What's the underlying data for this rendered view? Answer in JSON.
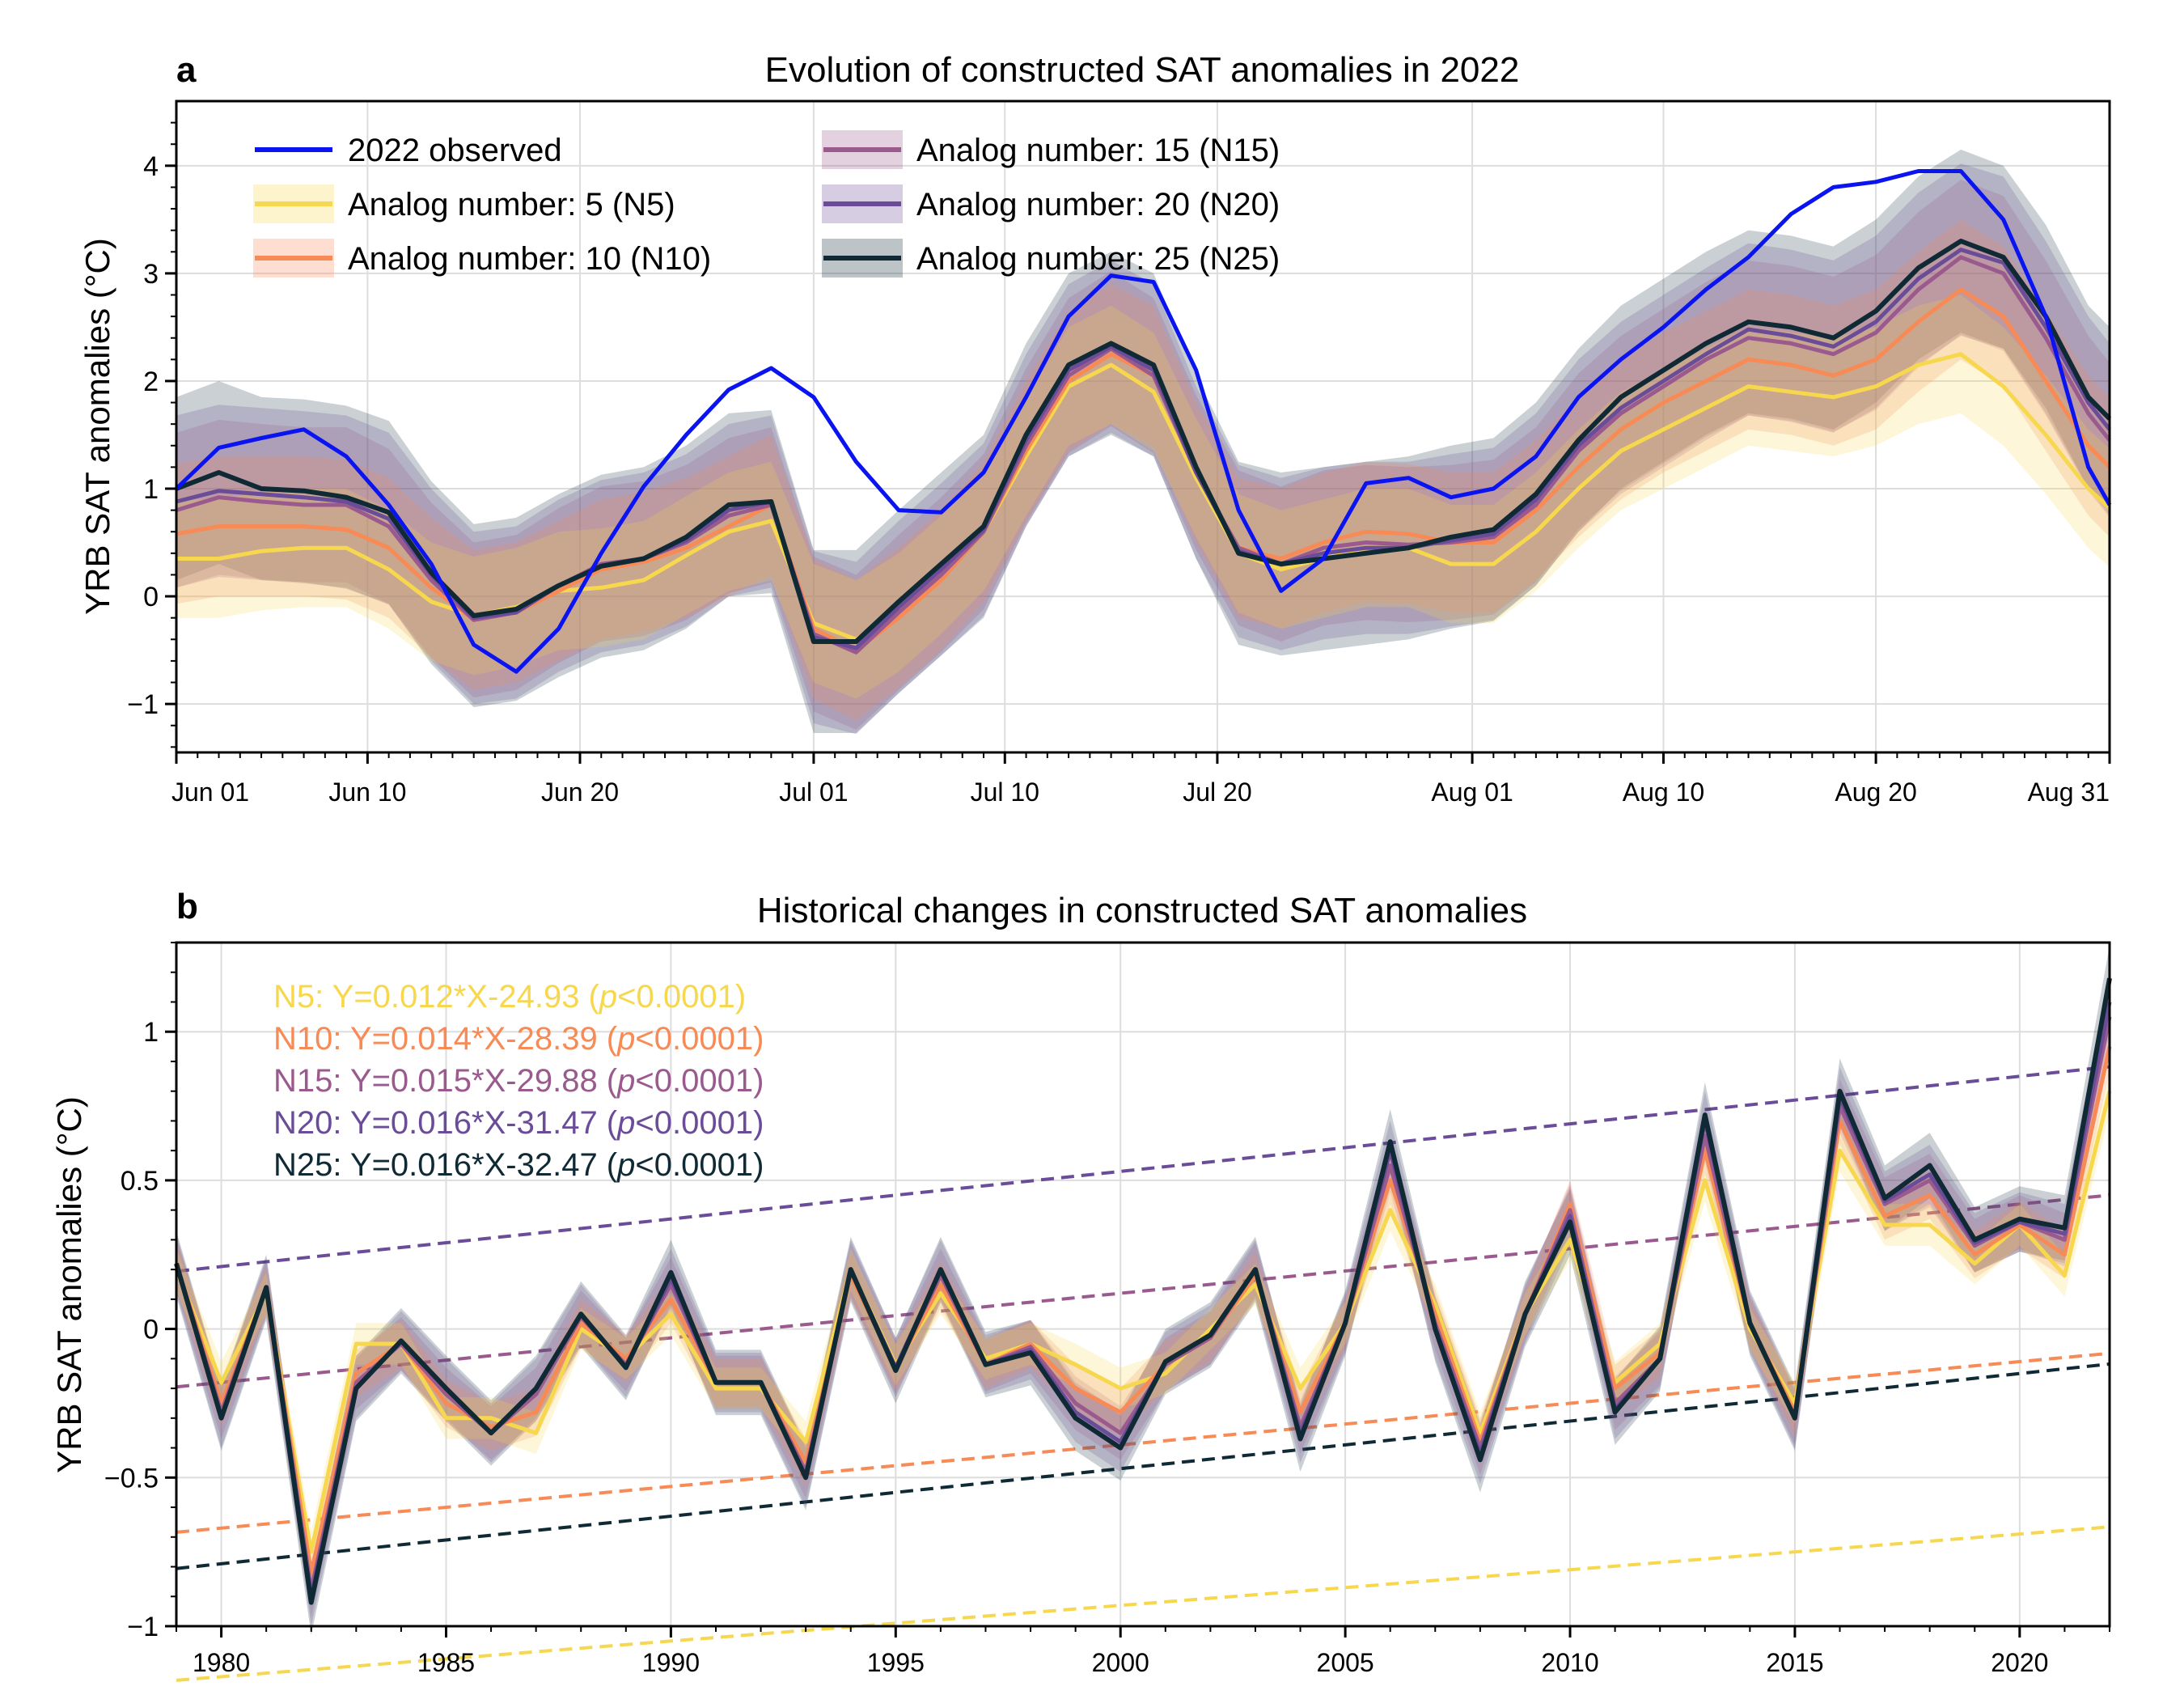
{
  "figure": {
    "panels": [
      {
        "letter": "a",
        "title": "Evolution of constructed SAT anomalies in 2022"
      },
      {
        "letter": "b",
        "title": "Historical changes in constructed SAT anomalies"
      }
    ]
  },
  "colors": {
    "observed": "#0a14f0",
    "N5": "#f7d74e",
    "N10": "#f78a55",
    "N15": "#9a5a8e",
    "N20": "#6a4c98",
    "N25": "#0f2a35"
  },
  "chart_data": [
    {
      "type": "line",
      "title": "Evolution of constructed SAT anomalies in 2022",
      "ylabel": "YRB SAT anomalies (°C)",
      "xlabel": "",
      "x_tick_labels": [
        "Jun 01",
        "Jun 10",
        "Jun 20",
        "Jul 01",
        "Jul 10",
        "Jul 20",
        "Aug 01",
        "Aug 10",
        "Aug 20",
        "Aug 31"
      ],
      "x_tick_days": [
        0,
        9,
        19,
        30,
        39,
        49,
        61,
        70,
        80,
        91
      ],
      "xlim": [
        0,
        91
      ],
      "ylim": [
        -1.45,
        4.6
      ],
      "y_ticks": [
        -1,
        0,
        1,
        2,
        3,
        4
      ],
      "y_tick_labels": [
        "−1",
        "0",
        "1",
        "2",
        "3",
        "4"
      ],
      "grid": true,
      "legend_position": "top-left, two columns",
      "legend": [
        "2022 observed",
        "Analog number: 5 (N5)",
        "Analog number: 10 (N10)",
        "Analog number: 15 (N15)",
        "Analog number: 20 (N20)",
        "Analog number: 25 (N25)"
      ],
      "x_day": [
        0,
        2,
        4,
        6,
        8,
        10,
        12,
        14,
        16,
        18,
        20,
        22,
        24,
        26,
        28,
        30,
        32,
        34,
        36,
        38,
        40,
        42,
        44,
        46,
        48,
        50,
        52,
        54,
        56,
        58,
        60,
        62,
        64,
        66,
        68,
        70,
        72,
        74,
        76,
        78,
        80,
        82,
        84,
        86,
        88,
        90,
        91
      ],
      "series": [
        {
          "name": "2022 observed",
          "key": "observed",
          "values": [
            1.0,
            1.38,
            1.47,
            1.55,
            1.3,
            0.85,
            0.3,
            -0.45,
            -0.7,
            -0.3,
            0.4,
            1.02,
            1.5,
            1.92,
            2.12,
            1.85,
            1.25,
            0.8,
            0.78,
            1.15,
            1.85,
            2.6,
            2.98,
            2.92,
            2.1,
            0.8,
            0.05,
            0.35,
            1.05,
            1.1,
            0.92,
            1.0,
            1.3,
            1.85,
            2.2,
            2.5,
            2.85,
            3.15,
            3.55,
            3.8,
            3.85,
            3.95,
            3.95,
            3.5,
            2.6,
            1.2,
            0.85
          ]
        },
        {
          "name": "Analog number: 5 (N5)",
          "key": "N5",
          "values": [
            0.35,
            0.35,
            0.42,
            0.45,
            0.45,
            0.25,
            -0.05,
            -0.18,
            -0.1,
            0.05,
            0.08,
            0.15,
            0.38,
            0.6,
            0.7,
            -0.25,
            -0.4,
            -0.15,
            0.2,
            0.6,
            1.3,
            1.95,
            2.15,
            1.9,
            1.1,
            0.4,
            0.25,
            0.35,
            0.45,
            0.45,
            0.3,
            0.3,
            0.6,
            1.0,
            1.35,
            1.55,
            1.75,
            1.95,
            1.9,
            1.85,
            1.95,
            2.15,
            2.25,
            1.95,
            1.5,
            1.0,
            0.82
          ]
        },
        {
          "name": "Analog number: 10 (N10)",
          "key": "N10",
          "values": [
            0.58,
            0.65,
            0.65,
            0.65,
            0.62,
            0.45,
            0.08,
            -0.22,
            -0.15,
            0.05,
            0.25,
            0.32,
            0.45,
            0.65,
            0.85,
            -0.3,
            -0.5,
            -0.2,
            0.15,
            0.6,
            1.35,
            2.0,
            2.25,
            2.05,
            1.15,
            0.45,
            0.35,
            0.5,
            0.6,
            0.58,
            0.5,
            0.5,
            0.8,
            1.2,
            1.55,
            1.8,
            2.0,
            2.2,
            2.15,
            2.05,
            2.2,
            2.55,
            2.85,
            2.6,
            2.0,
            1.4,
            1.2
          ]
        },
        {
          "name": "Analog number: 15 (N15)",
          "key": "N15",
          "values": [
            0.8,
            0.92,
            0.88,
            0.85,
            0.85,
            0.65,
            0.15,
            -0.22,
            -0.15,
            0.1,
            0.3,
            0.35,
            0.5,
            0.75,
            0.85,
            -0.35,
            -0.52,
            -0.15,
            0.2,
            0.6,
            1.4,
            2.05,
            2.3,
            2.05,
            1.15,
            0.45,
            0.3,
            0.45,
            0.5,
            0.48,
            0.5,
            0.55,
            0.85,
            1.35,
            1.7,
            1.95,
            2.2,
            2.4,
            2.35,
            2.25,
            2.45,
            2.85,
            3.15,
            3.0,
            2.4,
            1.7,
            1.45
          ]
        },
        {
          "name": "Analog number: 20 (N20)",
          "key": "N20",
          "values": [
            0.88,
            0.98,
            0.95,
            0.92,
            0.88,
            0.72,
            0.2,
            -0.2,
            -0.15,
            0.1,
            0.28,
            0.35,
            0.52,
            0.8,
            0.88,
            -0.38,
            -0.48,
            -0.1,
            0.25,
            0.62,
            1.45,
            2.1,
            2.32,
            2.1,
            1.15,
            0.42,
            0.3,
            0.4,
            0.45,
            0.45,
            0.52,
            0.58,
            0.9,
            1.4,
            1.75,
            2.0,
            2.25,
            2.48,
            2.42,
            2.32,
            2.55,
            2.95,
            3.22,
            3.1,
            2.5,
            1.8,
            1.55
          ]
        },
        {
          "name": "Analog number: 25 (N25)",
          "key": "N25",
          "values": [
            1.0,
            1.15,
            1.0,
            0.98,
            0.92,
            0.78,
            0.22,
            -0.18,
            -0.12,
            0.1,
            0.28,
            0.35,
            0.55,
            0.85,
            0.88,
            -0.42,
            -0.42,
            -0.05,
            0.3,
            0.65,
            1.5,
            2.15,
            2.35,
            2.15,
            1.2,
            0.4,
            0.3,
            0.35,
            0.4,
            0.45,
            0.55,
            0.62,
            0.95,
            1.45,
            1.85,
            2.1,
            2.35,
            2.55,
            2.5,
            2.4,
            2.65,
            3.05,
            3.3,
            3.15,
            2.6,
            1.85,
            1.65
          ]
        }
      ],
      "band_halfwidth_degC": {
        "N5": 0.55,
        "N10": 0.65,
        "N15": 0.72,
        "N20": 0.8,
        "N25": 0.85
      }
    },
    {
      "type": "line",
      "title": "Historical changes in constructed SAT anomalies",
      "ylabel": "YRB SAT anomalies (°C)",
      "xlabel": "",
      "xlim": [
        1979,
        2022
      ],
      "x_ticks": [
        1980,
        1985,
        1990,
        1995,
        2000,
        2005,
        2010,
        2015,
        2020
      ],
      "ylim": [
        -1.0,
        1.3
      ],
      "y_ticks": [
        -1,
        -0.5,
        0,
        0.5,
        1
      ],
      "y_tick_labels": [
        "−1",
        "−0.5",
        "0",
        "0.5",
        "1"
      ],
      "grid": true,
      "annotations": [
        {
          "key": "N5",
          "prefix": "N5: Y=0.012*X-24.93 (",
          "italic": "p",
          "suffix": "<0.0001)"
        },
        {
          "key": "N10",
          "prefix": "N10: Y=0.014*X-28.39 (",
          "italic": "p",
          "suffix": "<0.0001)"
        },
        {
          "key": "N15",
          "prefix": "N15: Y=0.015*X-29.88 (",
          "italic": "p",
          "suffix": "<0.0001)"
        },
        {
          "key": "N20",
          "prefix": "N20: Y=0.016*X-31.47 (",
          "italic": "p",
          "suffix": "<0.0001)"
        },
        {
          "key": "N25",
          "prefix": "N25: Y=0.016*X-32.47 (",
          "italic": "p",
          "suffix": "<0.0001)"
        }
      ],
      "trends": [
        {
          "key": "N5",
          "slope": 0.012,
          "intercept": -24.93
        },
        {
          "key": "N10",
          "slope": 0.014,
          "intercept": -28.39
        },
        {
          "key": "N15",
          "slope": 0.015,
          "intercept": -29.88
        },
        {
          "key": "N20",
          "slope": 0.016,
          "intercept": -31.47
        },
        {
          "key": "N25",
          "slope": 0.016,
          "intercept": -32.47
        }
      ],
      "x": [
        1979,
        1980,
        1981,
        1982,
        1983,
        1984,
        1985,
        1986,
        1987,
        1988,
        1989,
        1990,
        1991,
        1992,
        1993,
        1994,
        1995,
        1996,
        1997,
        1998,
        1999,
        2000,
        2001,
        2002,
        2003,
        2004,
        2005,
        2006,
        2007,
        2008,
        2009,
        2010,
        2011,
        2012,
        2013,
        2014,
        2015,
        2016,
        2017,
        2018,
        2019,
        2020,
        2021,
        2022
      ],
      "series": [
        {
          "name": "N5",
          "key": "N5",
          "values": [
            0.2,
            -0.18,
            0.12,
            -0.75,
            -0.05,
            -0.05,
            -0.3,
            -0.3,
            -0.35,
            0.0,
            -0.1,
            0.05,
            -0.2,
            -0.2,
            -0.38,
            0.2,
            -0.12,
            0.12,
            -0.1,
            -0.05,
            -0.12,
            -0.2,
            -0.15,
            0.0,
            0.15,
            -0.2,
            0.02,
            0.4,
            0.08,
            -0.35,
            0.05,
            0.3,
            -0.18,
            -0.05,
            0.5,
            0.0,
            -0.25,
            0.6,
            0.35,
            0.35,
            0.22,
            0.35,
            0.18,
            0.8
          ]
        },
        {
          "name": "N10",
          "key": "N10",
          "values": [
            0.22,
            -0.25,
            0.13,
            -0.82,
            -0.15,
            -0.05,
            -0.25,
            -0.33,
            -0.28,
            0.02,
            -0.1,
            0.1,
            -0.18,
            -0.18,
            -0.45,
            0.18,
            -0.13,
            0.15,
            -0.12,
            -0.05,
            -0.2,
            -0.28,
            -0.12,
            -0.03,
            0.18,
            -0.28,
            0.02,
            0.5,
            0.05,
            -0.38,
            0.05,
            0.42,
            -0.2,
            -0.08,
            0.6,
            0.02,
            -0.28,
            0.7,
            0.38,
            0.45,
            0.25,
            0.35,
            0.25,
            0.95
          ]
        },
        {
          "name": "N15",
          "key": "N15",
          "values": [
            0.22,
            -0.28,
            0.14,
            -0.88,
            -0.18,
            -0.05,
            -0.22,
            -0.35,
            -0.22,
            0.04,
            -0.12,
            0.15,
            -0.18,
            -0.18,
            -0.48,
            0.2,
            -0.13,
            0.18,
            -0.12,
            -0.06,
            -0.25,
            -0.35,
            -0.12,
            -0.03,
            0.2,
            -0.33,
            0.02,
            0.55,
            0.02,
            -0.4,
            0.05,
            0.4,
            -0.25,
            -0.1,
            0.65,
            0.02,
            -0.3,
            0.75,
            0.42,
            0.5,
            0.28,
            0.36,
            0.3,
            1.05
          ]
        },
        {
          "name": "N20",
          "key": "N20",
          "values": [
            0.22,
            -0.3,
            0.14,
            -0.9,
            -0.2,
            -0.04,
            -0.2,
            -0.35,
            -0.2,
            0.05,
            -0.13,
            0.17,
            -0.18,
            -0.18,
            -0.5,
            0.2,
            -0.13,
            0.2,
            -0.12,
            -0.07,
            -0.28,
            -0.38,
            -0.11,
            -0.02,
            0.2,
            -0.35,
            0.02,
            0.6,
            0.0,
            -0.42,
            0.05,
            0.38,
            -0.27,
            -0.1,
            0.7,
            0.02,
            -0.3,
            0.78,
            0.43,
            0.52,
            0.29,
            0.36,
            0.32,
            1.1
          ]
        },
        {
          "name": "N25",
          "key": "N25",
          "values": [
            0.22,
            -0.3,
            0.14,
            -0.92,
            -0.2,
            -0.04,
            -0.2,
            -0.35,
            -0.2,
            0.05,
            -0.13,
            0.19,
            -0.18,
            -0.18,
            -0.5,
            0.2,
            -0.14,
            0.2,
            -0.12,
            -0.08,
            -0.3,
            -0.4,
            -0.11,
            -0.02,
            0.2,
            -0.37,
            0.02,
            0.63,
            0.0,
            -0.44,
            0.05,
            0.36,
            -0.28,
            -0.1,
            0.72,
            0.02,
            -0.3,
            0.8,
            0.44,
            0.55,
            0.3,
            0.37,
            0.34,
            1.18
          ]
        }
      ],
      "band_halfwidth_degC": {
        "N5": 0.07,
        "N10": 0.08,
        "N15": 0.09,
        "N20": 0.1,
        "N25": 0.11
      }
    }
  ]
}
